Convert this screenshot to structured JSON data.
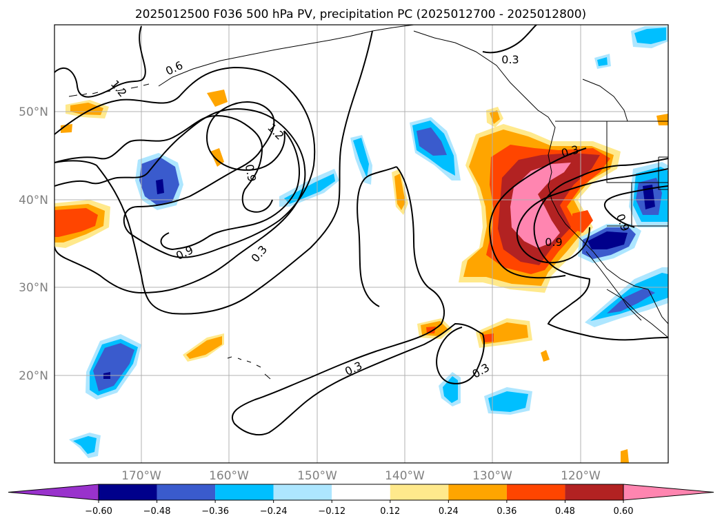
{
  "title": "2025012500 F036 500 hPa PV, precipitation PC (2025012700 - 2025012800)",
  "map": {
    "lat_labels": [
      "50°N",
      "40°N",
      "30°N",
      "20°N"
    ],
    "lon_labels": [
      "170°W",
      "160°W",
      "150°W",
      "140°W",
      "130°W",
      "120°W"
    ],
    "contour_labels": {
      "pv_06": "0.6",
      "pv_12a": "1.2",
      "pv_12b": "1.2",
      "pv_09a": "0.9",
      "pv_09b": "0.9",
      "pv_03a": "0.3",
      "pv_03b": "0.3",
      "pv_03c": "0.3",
      "pv_03d": "0.3",
      "pv_03e": "0.3",
      "pv_09c": "0.9",
      "pv_09d": "0.9"
    }
  },
  "colorbar": {
    "ticks": [
      "−0.60",
      "−0.48",
      "−0.36",
      "−0.24",
      "−0.12",
      "0.12",
      "0.24",
      "0.36",
      "0.48",
      "0.60"
    ],
    "colors": [
      "#9932cc",
      "#00008b",
      "#3a5bcd",
      "#00bfff",
      "#ade6ff",
      "#ffffff",
      "#ffe98c",
      "#ffa500",
      "#ff4500",
      "#b22222",
      "#ff85b0"
    ]
  },
  "colors": {
    "neg_light": "#ade6ff",
    "neg_mid": "#00bfff",
    "neg_strong": "#3a5bcd",
    "neg_max": "#00008b",
    "pos_light": "#ffe98c",
    "pos_mid": "#ffa500",
    "pos_strong": "#ff4500",
    "pos_dark": "#b22222",
    "pos_max": "#ff85b0"
  }
}
